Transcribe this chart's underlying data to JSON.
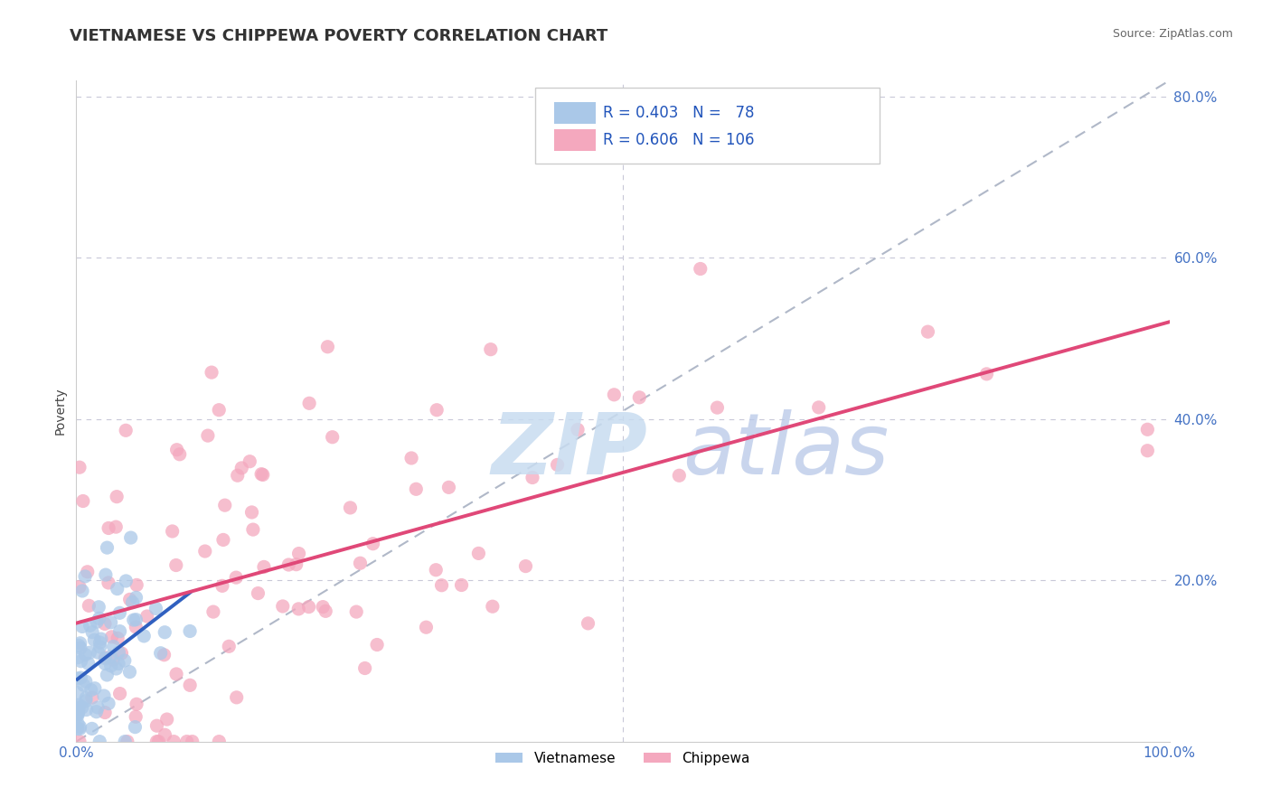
{
  "title": "VIETNAMESE VS CHIPPEWA POVERTY CORRELATION CHART",
  "source": "Source: ZipAtlas.com",
  "ylabel": "Poverty",
  "R_vietnamese": 0.403,
  "N_vietnamese": 78,
  "R_chippewa": 0.606,
  "N_chippewa": 106,
  "color_vietnamese": "#aac8e8",
  "color_chippewa": "#f4a8be",
  "line_color_vietnamese": "#3060c0",
  "line_color_chippewa": "#e04878",
  "diag_line_color": "#b0b8c8",
  "grid_color": "#c8c8d8",
  "background_color": "#ffffff",
  "title_fontsize": 13,
  "legend_fontsize": 12,
  "watermark_zip_color": "#c8dcf0",
  "watermark_atlas_color": "#b8c8e8"
}
